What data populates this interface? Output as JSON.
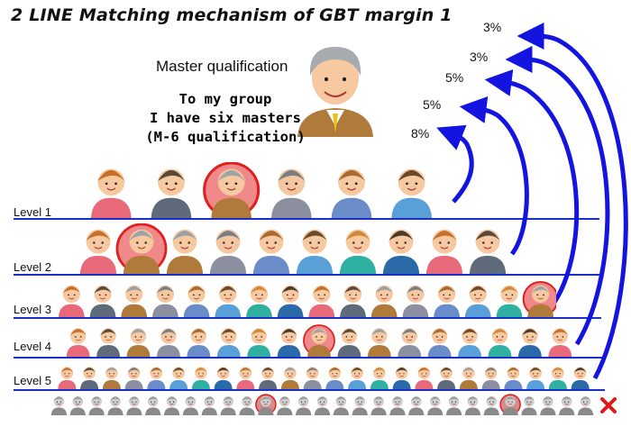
{
  "title": "2 LINE Matching mechanism of GBT margin 1",
  "master_label": "Master qualification",
  "group_text": [
    "To my group",
    "I have six masters",
    "(M-6 qualification)"
  ],
  "levels": [
    {
      "label": "Level 1",
      "percent": "8%",
      "people": 6,
      "master_positions": [
        3
      ]
    },
    {
      "label": "Level 2",
      "percent": "5%",
      "people": 10,
      "master_positions": [
        2
      ]
    },
    {
      "label": "Level 3",
      "percent": "5%",
      "people": 16,
      "master_positions": [
        16
      ]
    },
    {
      "label": "Level 4",
      "percent": "3%",
      "people": 17,
      "master_positions": [
        9
      ]
    },
    {
      "label": "Level 5",
      "percent": "3%",
      "people": 24,
      "master_positions": []
    }
  ],
  "level_6": {
    "people": 29,
    "master_positions": [
      12,
      25
    ],
    "status": "cross-icon"
  },
  "colors": {
    "line": "#1a2fc8",
    "arrow": "#1414e0",
    "master_circle": "#e02020",
    "master_fill": "#f08a8a"
  },
  "icons": [
    "master-avatar-icon",
    "person-icon",
    "arrow-icon",
    "cross-icon"
  ]
}
